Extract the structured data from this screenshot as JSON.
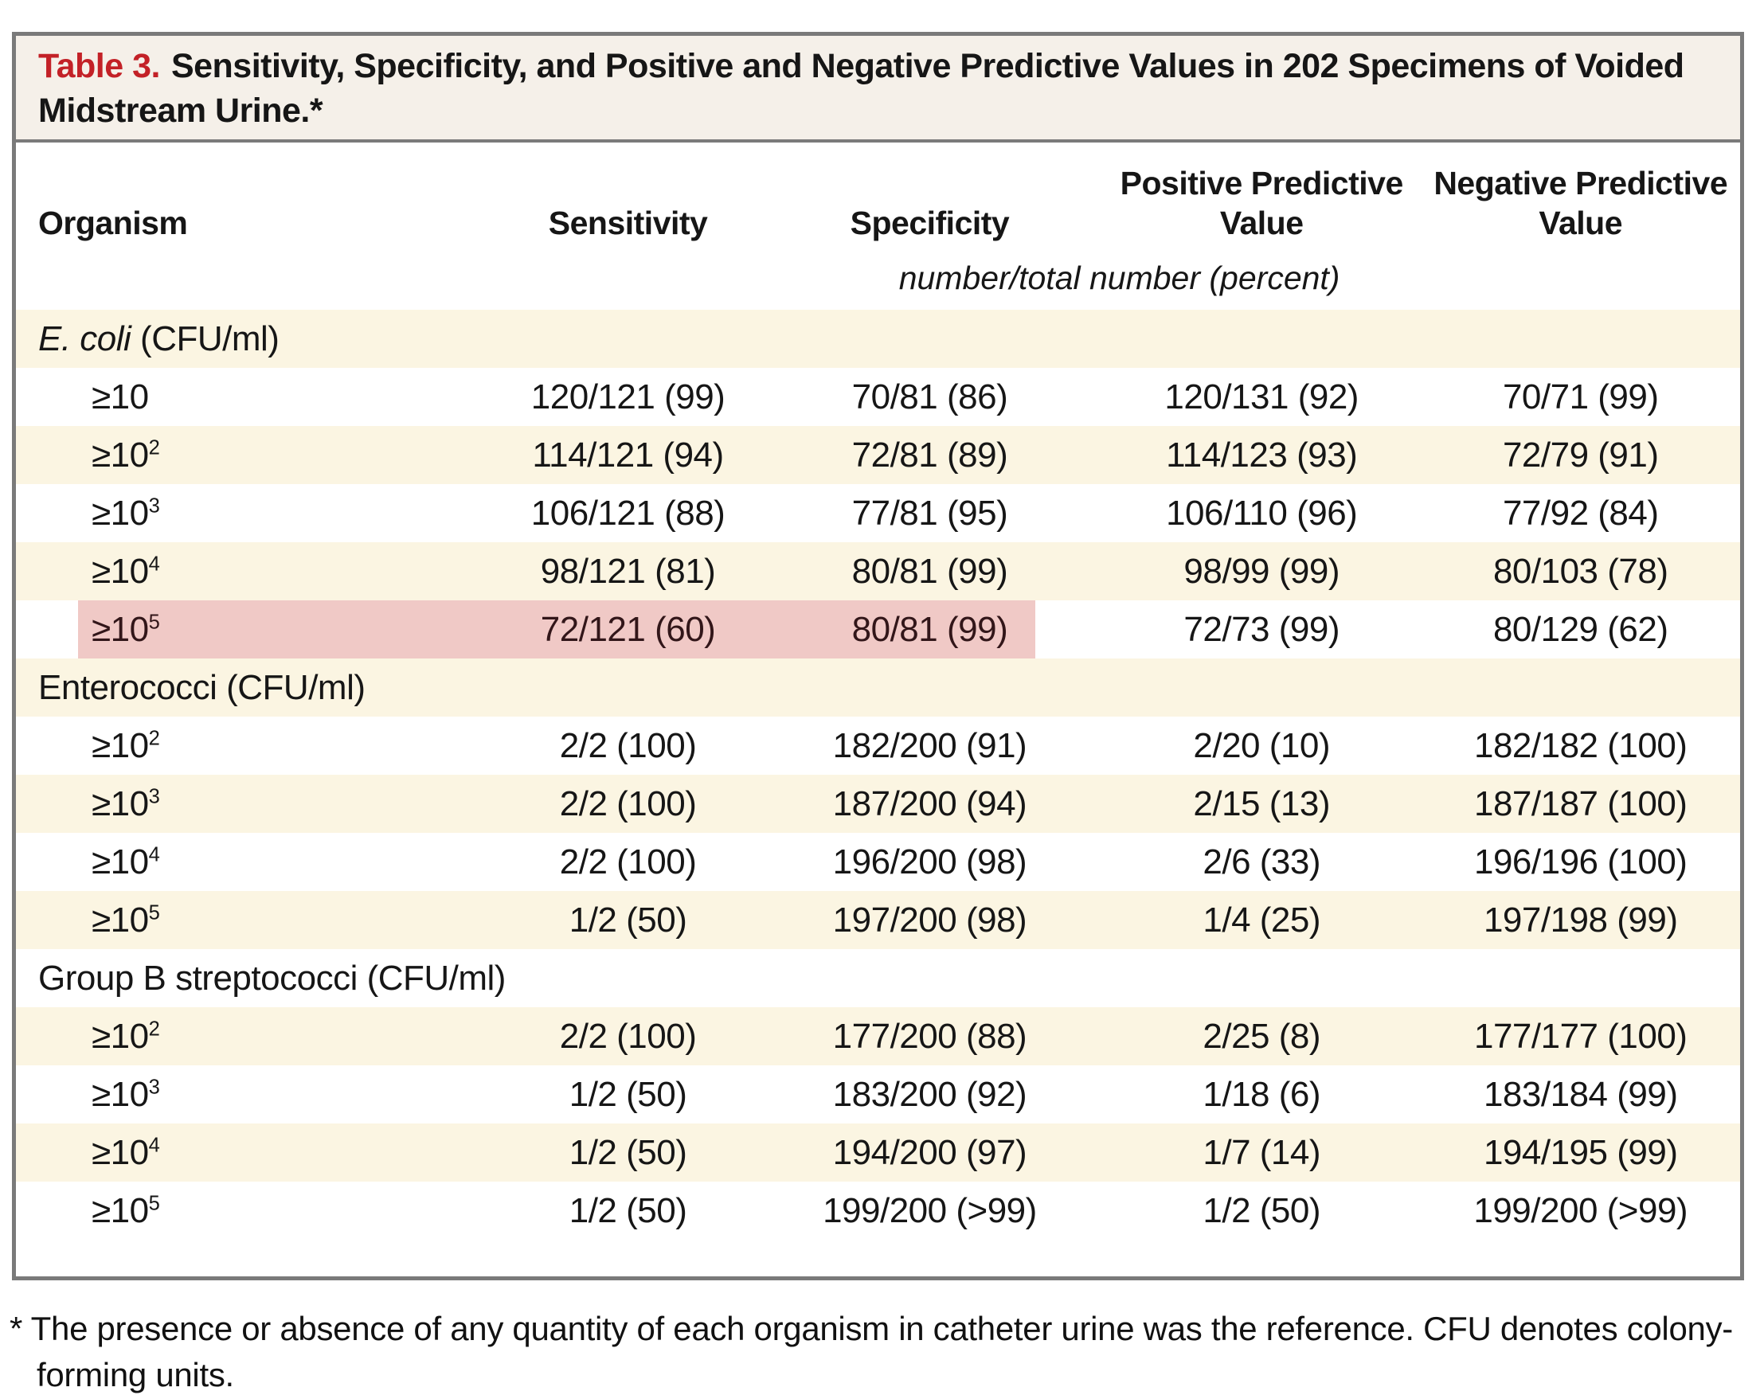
{
  "title": {
    "label": "Table 3.",
    "text": "Sensitivity, Specificity, and Positive and Negative Predictive Values in 202 Specimens of Voided Midstream Urine.*"
  },
  "chart_data": {
    "type": "table",
    "columns": [
      "Organism",
      "Sensitivity",
      "Specificity",
      "Positive Predictive\nValue",
      "Negative Predictive\nValue"
    ],
    "units_row": "number/total number (percent)",
    "sections": [
      {
        "label_italic": "E. coli",
        "label_rest": " (CFU/ml)",
        "rows": [
          {
            "threshold_base": "≥10",
            "threshold_sup": "",
            "values": [
              "120/121 (99)",
              "70/81 (86)",
              "120/131 (92)",
              "70/71 (99)"
            ],
            "highlight": false
          },
          {
            "threshold_base": "≥10",
            "threshold_sup": "2",
            "values": [
              "114/121 (94)",
              "72/81 (89)",
              "114/123 (93)",
              "72/79 (91)"
            ],
            "highlight": false
          },
          {
            "threshold_base": "≥10",
            "threshold_sup": "3",
            "values": [
              "106/121 (88)",
              "77/81 (95)",
              "106/110 (96)",
              "77/92 (84)"
            ],
            "highlight": false
          },
          {
            "threshold_base": "≥10",
            "threshold_sup": "4",
            "values": [
              "98/121 (81)",
              "80/81 (99)",
              "98/99 (99)",
              "80/103 (78)"
            ],
            "highlight": false
          },
          {
            "threshold_base": "≥10",
            "threshold_sup": "5",
            "values": [
              "72/121 (60)",
              "80/81 (99)",
              "72/73 (99)",
              "80/129 (62)"
            ],
            "highlight": true
          }
        ]
      },
      {
        "label_italic": "",
        "label_rest": "Enterococci (CFU/ml)",
        "rows": [
          {
            "threshold_base": "≥10",
            "threshold_sup": "2",
            "values": [
              "2/2 (100)",
              "182/200 (91)",
              "2/20 (10)",
              "182/182 (100)"
            ],
            "highlight": false
          },
          {
            "threshold_base": "≥10",
            "threshold_sup": "3",
            "values": [
              "2/2 (100)",
              "187/200 (94)",
              "2/15 (13)",
              "187/187 (100)"
            ],
            "highlight": false
          },
          {
            "threshold_base": "≥10",
            "threshold_sup": "4",
            "values": [
              "2/2 (100)",
              "196/200 (98)",
              "2/6 (33)",
              "196/196 (100)"
            ],
            "highlight": false
          },
          {
            "threshold_base": "≥10",
            "threshold_sup": "5",
            "values": [
              "1/2 (50)",
              "197/200 (98)",
              "1/4 (25)",
              "197/198 (99)"
            ],
            "highlight": false
          }
        ]
      },
      {
        "label_italic": "",
        "label_rest": "Group B streptococci (CFU/ml)",
        "rows": [
          {
            "threshold_base": "≥10",
            "threshold_sup": "2",
            "values": [
              "2/2 (100)",
              "177/200 (88)",
              "2/25 (8)",
              "177/177 (100)"
            ],
            "highlight": false
          },
          {
            "threshold_base": "≥10",
            "threshold_sup": "3",
            "values": [
              "1/2 (50)",
              "183/200 (92)",
              "1/18 (6)",
              "183/184 (99)"
            ],
            "highlight": false
          },
          {
            "threshold_base": "≥10",
            "threshold_sup": "4",
            "values": [
              "1/2 (50)",
              "194/200 (97)",
              "1/7 (14)",
              "194/195 (99)"
            ],
            "highlight": false
          },
          {
            "threshold_base": "≥10",
            "threshold_sup": "5",
            "values": [
              "1/2 (50)",
              "199/200 (>99)",
              "1/2 (50)",
              "199/200 (>99)"
            ],
            "highlight": false
          }
        ]
      }
    ]
  },
  "footnote": "* The presence or absence of any quantity of each organism in catheter urine was the reference. CFU denotes colony-forming units.",
  "colors": {
    "accent_red": "#c32127",
    "stripe_cream": "#fbf5e2",
    "title_band": "#f5f0e9",
    "highlight_pink": "#f0c9c6",
    "frame_gray": "#7a7a7a"
  }
}
